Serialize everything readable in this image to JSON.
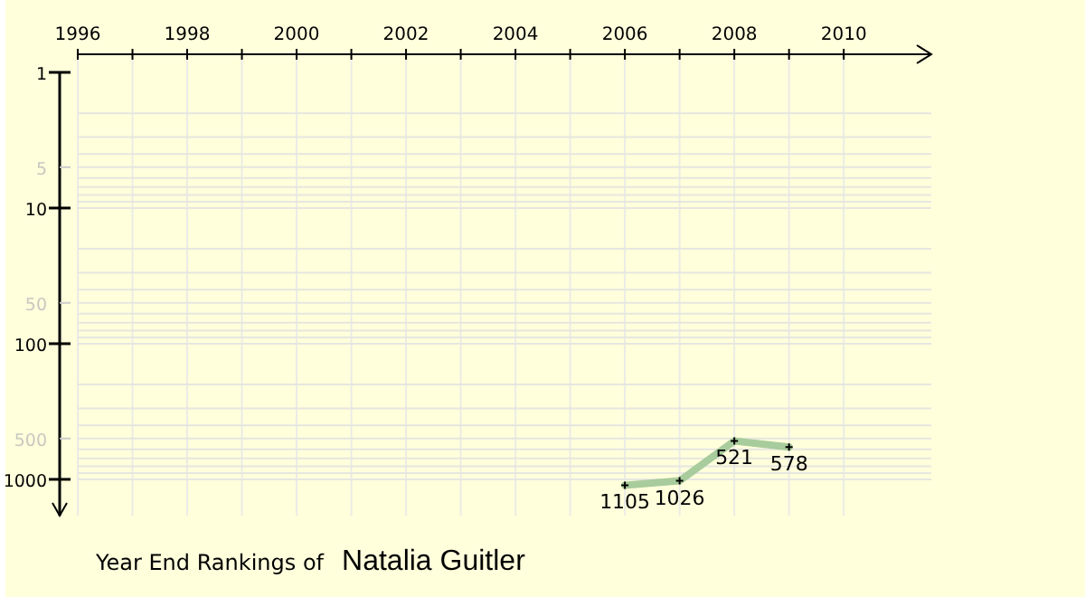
{
  "chart_data": {
    "type": "line",
    "title": "Year End Rankings of",
    "subtitle": "Natalia Guitler",
    "x": [
      2006,
      2007,
      2008,
      2009
    ],
    "series": [
      {
        "color": "#a8cc9c",
        "values": [
          1105,
          1026,
          521,
          578
        ]
      }
    ],
    "xlim": [
      1996,
      2011.6
    ],
    "xticks": [
      1996,
      {
        "value": 1997,
        "label": null
      },
      1998,
      {
        "value": 1999,
        "label": null
      },
      2000,
      {
        "value": 2001,
        "label": null
      },
      2002,
      {
        "value": 2003,
        "label": null
      },
      2004,
      {
        "value": 2005,
        "label": null
      },
      2006,
      {
        "value": 2007,
        "label": null
      },
      2008,
      {
        "value": 2009,
        "label": null
      },
      2010
    ],
    "ylim": [
      1850,
      1
    ],
    "yticks": [
      1,
      5,
      10,
      50,
      100,
      500,
      1000
    ],
    "log": true,
    "grid": true,
    "marker": "cross",
    "data_labels": true
  }
}
